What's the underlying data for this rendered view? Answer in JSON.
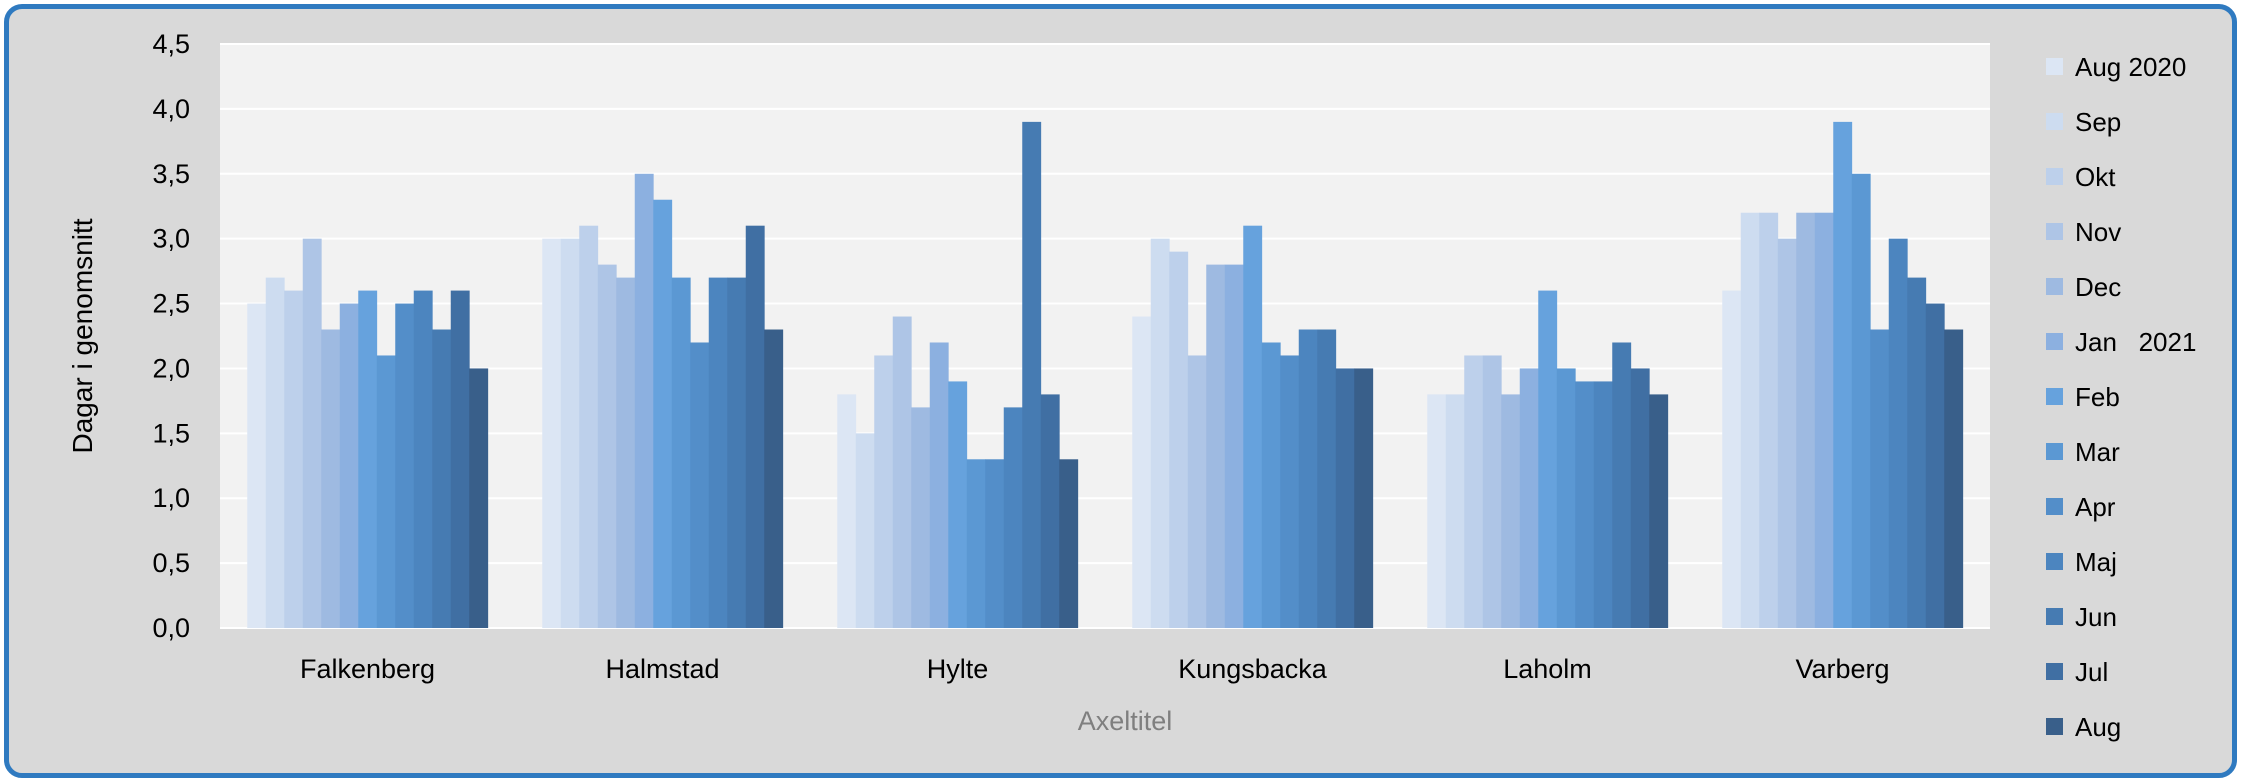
{
  "chart_data": {
    "type": "bar",
    "title": "",
    "xlabel": "Axeltitel",
    "ylabel": "Dagar i genomsnitt",
    "ylim": [
      0,
      4.5
    ],
    "yticks": [
      "0,0",
      "0,5",
      "1,0",
      "1,5",
      "2,0",
      "2,5",
      "3,0",
      "3,5",
      "4,0",
      "4,5"
    ],
    "grid": true,
    "legend_position": "right",
    "categories": [
      "Falkenberg",
      "Halmstad",
      "Hylte",
      "Kungsbacka",
      "Laholm",
      "Varberg"
    ],
    "series": [
      {
        "name": "Aug 2020",
        "color": "#dce6f4",
        "values": [
          2.5,
          3.0,
          1.8,
          2.4,
          1.8,
          2.6
        ]
      },
      {
        "name": "Sep",
        "color": "#cddcf0",
        "values": [
          2.7,
          3.0,
          1.5,
          3.0,
          1.8,
          3.2
        ]
      },
      {
        "name": "Okt",
        "color": "#bdd0eb",
        "values": [
          2.6,
          3.1,
          2.1,
          2.9,
          2.1,
          3.2
        ]
      },
      {
        "name": "Nov",
        "color": "#aec5e6",
        "values": [
          3.0,
          2.8,
          2.4,
          2.1,
          2.1,
          3.0
        ]
      },
      {
        "name": "Dec",
        "color": "#9ebae1",
        "values": [
          2.3,
          2.7,
          1.7,
          2.8,
          1.8,
          3.2
        ]
      },
      {
        "name": "Jan   2021",
        "color": "#8cb0e0",
        "values": [
          2.5,
          3.5,
          2.2,
          2.8,
          2.0,
          3.2
        ]
      },
      {
        "name": "Feb",
        "color": "#66a2dd",
        "values": [
          2.6,
          3.3,
          1.9,
          3.1,
          2.6,
          3.9
        ]
      },
      {
        "name": "Mar",
        "color": "#5b98d3",
        "values": [
          2.1,
          2.7,
          1.3,
          2.2,
          2.0,
          3.5
        ]
      },
      {
        "name": "Apr",
        "color": "#538ec9",
        "values": [
          2.5,
          2.2,
          1.3,
          2.1,
          1.9,
          2.3
        ]
      },
      {
        "name": "Maj",
        "color": "#4c85bf",
        "values": [
          2.6,
          2.7,
          1.7,
          2.3,
          1.9,
          3.0
        ]
      },
      {
        "name": "Jun",
        "color": "#467bb2",
        "values": [
          2.3,
          2.7,
          3.9,
          2.3,
          2.2,
          2.7
        ]
      },
      {
        "name": "Jul",
        "color": "#406fa3",
        "values": [
          2.6,
          3.1,
          1.8,
          2.0,
          2.0,
          2.5
        ]
      },
      {
        "name": "Aug",
        "color": "#395f8a",
        "values": [
          2.0,
          2.3,
          1.3,
          2.0,
          1.8,
          2.3
        ]
      }
    ]
  },
  "colors": {
    "frame_border": "#2f7ac0",
    "frame_bg": "#d9d9d9",
    "plot_bg": "#f2f2f2",
    "gridline": "#ffffff"
  }
}
